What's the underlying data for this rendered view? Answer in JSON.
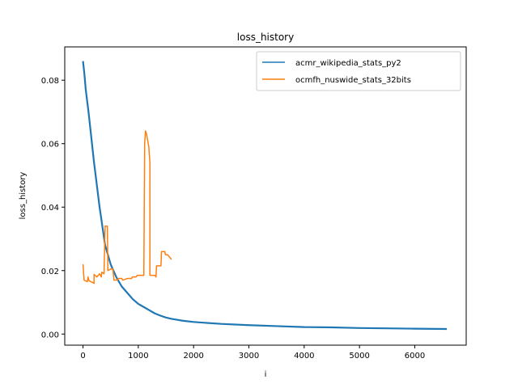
{
  "chart_data": {
    "type": "line",
    "title": "loss_history",
    "xlabel": "i",
    "ylabel": "loss_history",
    "xlim": [
      -330,
      6930
    ],
    "ylim": [
      -0.0035,
      0.0905
    ],
    "xticks": [
      0,
      1000,
      2000,
      3000,
      4000,
      5000,
      6000
    ],
    "xtick_labels": [
      "0",
      "1000",
      "2000",
      "3000",
      "4000",
      "5000",
      "6000"
    ],
    "yticks": [
      0.0,
      0.02,
      0.04,
      0.06,
      0.08
    ],
    "ytick_labels": [
      "0.00",
      "0.02",
      "0.04",
      "0.06",
      "0.08"
    ],
    "grid": false,
    "legend_position": "top-right",
    "series": [
      {
        "name": "acmr_wikipedia_stats_py2",
        "color": "#1f77b4",
        "points": [
          [
            0,
            0.086
          ],
          [
            25,
            0.082
          ],
          [
            50,
            0.077
          ],
          [
            100,
            0.07
          ],
          [
            150,
            0.062
          ],
          [
            200,
            0.054
          ],
          [
            250,
            0.047
          ],
          [
            300,
            0.04
          ],
          [
            350,
            0.034
          ],
          [
            400,
            0.028
          ],
          [
            450,
            0.025
          ],
          [
            500,
            0.022
          ],
          [
            600,
            0.018
          ],
          [
            700,
            0.015
          ],
          [
            800,
            0.013
          ],
          [
            900,
            0.011
          ],
          [
            1000,
            0.0095
          ],
          [
            1100,
            0.0085
          ],
          [
            1200,
            0.0075
          ],
          [
            1300,
            0.0065
          ],
          [
            1400,
            0.0058
          ],
          [
            1500,
            0.0052
          ],
          [
            1600,
            0.0048
          ],
          [
            1700,
            0.0045
          ],
          [
            1800,
            0.0042
          ],
          [
            2000,
            0.0038
          ],
          [
            2500,
            0.0032
          ],
          [
            3000,
            0.0028
          ],
          [
            3500,
            0.0025
          ],
          [
            4000,
            0.0022
          ],
          [
            4500,
            0.0021
          ],
          [
            5000,
            0.0019
          ],
          [
            5500,
            0.0018
          ],
          [
            6000,
            0.0017
          ],
          [
            6580,
            0.0016
          ]
        ]
      },
      {
        "name": "ocmfh_nuswide_stats_32bits",
        "color": "#ff7f0e",
        "points": [
          [
            0,
            0.022
          ],
          [
            20,
            0.017
          ],
          [
            80,
            0.0165
          ],
          [
            90,
            0.018
          ],
          [
            110,
            0.0168
          ],
          [
            200,
            0.016
          ],
          [
            200,
            0.0188
          ],
          [
            250,
            0.018
          ],
          [
            300,
            0.019
          ],
          [
            330,
            0.018
          ],
          [
            340,
            0.0195
          ],
          [
            380,
            0.019
          ],
          [
            400,
            0.034
          ],
          [
            440,
            0.034
          ],
          [
            450,
            0.02
          ],
          [
            500,
            0.0205
          ],
          [
            540,
            0.0205
          ],
          [
            560,
            0.017
          ],
          [
            620,
            0.017
          ],
          [
            640,
            0.0175
          ],
          [
            700,
            0.0175
          ],
          [
            720,
            0.017
          ],
          [
            800,
            0.0175
          ],
          [
            880,
            0.0175
          ],
          [
            890,
            0.018
          ],
          [
            960,
            0.018
          ],
          [
            980,
            0.0185
          ],
          [
            1100,
            0.0185
          ],
          [
            1100,
            0.0185
          ],
          [
            1115,
            0.06
          ],
          [
            1130,
            0.064
          ],
          [
            1150,
            0.063
          ],
          [
            1190,
            0.059
          ],
          [
            1210,
            0.054
          ],
          [
            1210,
            0.0185
          ],
          [
            1300,
            0.0185
          ],
          [
            1320,
            0.018
          ],
          [
            1330,
            0.0215
          ],
          [
            1410,
            0.0215
          ],
          [
            1420,
            0.026
          ],
          [
            1480,
            0.026
          ],
          [
            1490,
            0.025
          ],
          [
            1530,
            0.025
          ],
          [
            1600,
            0.0235
          ]
        ]
      }
    ]
  }
}
